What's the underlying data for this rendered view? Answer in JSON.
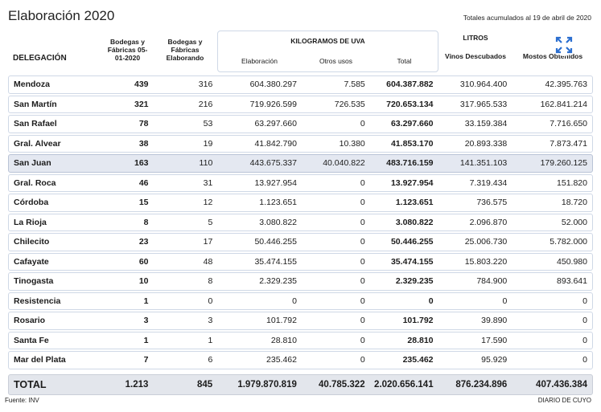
{
  "header": {
    "title": "Elaboración 2020",
    "note": "Totales acumulados al 19 de abril de 2020"
  },
  "table": {
    "group_headers": {
      "kilos": "KILOGRAMOS DE UVA",
      "litros": "LITROS"
    },
    "columns": [
      "DELEGACIÓN",
      "Bodegas y Fábricas 05-01-2020",
      "Bodegas y Fábricas Elaborando",
      "Elaboración",
      "Otros usos",
      "Total",
      "Vinos Descubados",
      "Mostos Obtenidos"
    ],
    "rows": [
      [
        "Mendoza",
        "439",
        "316",
        "604.380.297",
        "7.585",
        "604.387.882",
        "310.964.400",
        "42.395.763"
      ],
      [
        "San Martín",
        "321",
        "216",
        "719.926.599",
        "726.535",
        "720.653.134",
        "317.965.533",
        "162.841.214"
      ],
      [
        "San Rafael",
        "78",
        "53",
        "63.297.660",
        "0",
        "63.297.660",
        "33.159.384",
        "7.716.650"
      ],
      [
        "Gral. Alvear",
        "38",
        "19",
        "41.842.790",
        "10.380",
        "41.853.170",
        "20.893.338",
        "7.873.471"
      ],
      [
        "San Juan",
        "163",
        "110",
        "443.675.337",
        "40.040.822",
        "483.716.159",
        "141.351.103",
        "179.260.125"
      ],
      [
        "Gral. Roca",
        "46",
        "31",
        "13.927.954",
        "0",
        "13.927.954",
        "7.319.434",
        "151.820"
      ],
      [
        "Córdoba",
        "15",
        "12",
        "1.123.651",
        "0",
        "1.123.651",
        "736.575",
        "18.720"
      ],
      [
        "La Rioja",
        "8",
        "5",
        "3.080.822",
        "0",
        "3.080.822",
        "2.096.870",
        "52.000"
      ],
      [
        "Chilecito",
        "23",
        "17",
        "50.446.255",
        "0",
        "50.446.255",
        "25.006.730",
        "5.782.000"
      ],
      [
        "Cafayate",
        "60",
        "48",
        "35.474.155",
        "0",
        "35.474.155",
        "15.803.220",
        "450.980"
      ],
      [
        "Tinogasta",
        "10",
        "8",
        "2.329.235",
        "0",
        "2.329.235",
        "784.900",
        "893.641"
      ],
      [
        "Resistencia",
        "1",
        "0",
        "0",
        "0",
        "0",
        "0",
        "0"
      ],
      [
        "Rosario",
        "3",
        "3",
        "101.792",
        "0",
        "101.792",
        "39.890",
        "0"
      ],
      [
        "Santa Fe",
        "1",
        "1",
        "28.810",
        "0",
        "28.810",
        "17.590",
        "0"
      ],
      [
        "Mar del Plata",
        "7",
        "6",
        "235.462",
        "0",
        "235.462",
        "95.929",
        "0"
      ]
    ],
    "total": [
      "TOTAL",
      "1.213",
      "845",
      "1.979.870.819",
      "40.785.322",
      "2.020.656.141",
      "876.234.896",
      "407.436.384"
    ]
  },
  "footer": {
    "source": "Fuente: INV",
    "brand": "DIARIO DE CUYO"
  }
}
